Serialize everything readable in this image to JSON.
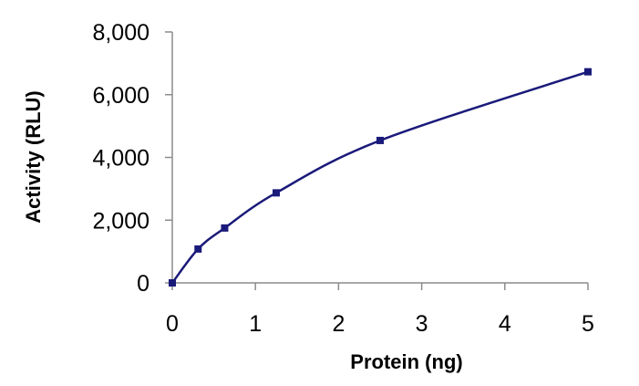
{
  "chart_data": {
    "type": "line",
    "title": "",
    "xlabel": "Protein (ng)",
    "ylabel": "Activity (RLU)",
    "xlim": [
      0,
      5
    ],
    "ylim": [
      0,
      8000
    ],
    "x_ticks": [
      0,
      1,
      2,
      3,
      4,
      5
    ],
    "x_tick_labels": [
      "0",
      "1",
      "2",
      "3",
      "4",
      "5"
    ],
    "y_ticks": [
      0,
      2000,
      4000,
      6000,
      8000
    ],
    "y_tick_labels": [
      "0",
      "2,000",
      "4,000",
      "6,000",
      "8,000"
    ],
    "grid": false,
    "legend": "none",
    "smooth": true,
    "series": [
      {
        "color": "#1a1a7a",
        "marker": "square",
        "x": [
          0,
          0.31,
          0.63,
          1.25,
          2.5,
          5
        ],
        "y": [
          0,
          1080,
          1750,
          2870,
          4540,
          6730
        ]
      }
    ]
  }
}
